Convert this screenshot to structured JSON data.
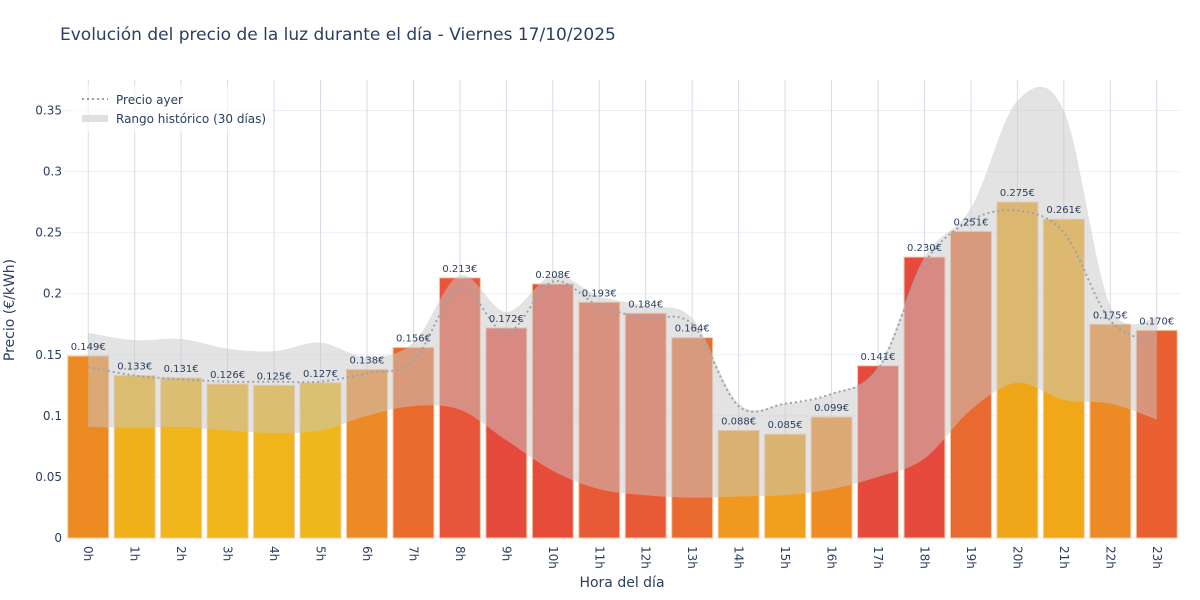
{
  "chart_data": {
    "type": "bar",
    "title": "Evolución del precio de la luz durante el día - Viernes 17/10/2025",
    "xlabel": "Hora del día",
    "ylabel": "Precio (€/kWh)",
    "ylim": [
      0,
      0.375
    ],
    "yticks": [
      0,
      0.05,
      0.1,
      0.15,
      0.2,
      0.25,
      0.3,
      0.35
    ],
    "ytick_labels": [
      "0",
      "0.05",
      "0.1",
      "0.15",
      "0.2",
      "0.25",
      "0.3",
      "0.35"
    ],
    "grid": true,
    "legend_position": "top-left",
    "categories": [
      "0h",
      "1h",
      "2h",
      "3h",
      "4h",
      "5h",
      "6h",
      "7h",
      "8h",
      "9h",
      "10h",
      "11h",
      "12h",
      "13h",
      "14h",
      "15h",
      "16h",
      "17h",
      "18h",
      "19h",
      "20h",
      "21h",
      "22h",
      "23h"
    ],
    "values": [
      0.149,
      0.133,
      0.131,
      0.126,
      0.125,
      0.127,
      0.138,
      0.156,
      0.213,
      0.172,
      0.208,
      0.193,
      0.184,
      0.164,
      0.088,
      0.085,
      0.099,
      0.141,
      0.23,
      0.251,
      0.275,
      0.261,
      0.175,
      0.17
    ],
    "labels": [
      "0.149€",
      "0.133€",
      "0.131€",
      "0.126€",
      "0.125€",
      "0.127€",
      "0.138€",
      "0.156€",
      "0.213€",
      "0.172€",
      "0.208€",
      "0.193€",
      "0.184€",
      "0.164€",
      "0.088€",
      "0.085€",
      "0.099€",
      "0.141€",
      "0.230€",
      "0.251€",
      "0.275€",
      "0.261€",
      "0.175€",
      "0.170€"
    ],
    "bar_colors": [
      "#ec8a22",
      "#efb21a",
      "#efb51a",
      "#efb51a",
      "#efb51a",
      "#efb81a",
      "#ec8a26",
      "#ea6a2e",
      "#e8553a",
      "#e64a3c",
      "#e64c3a",
      "#e85a36",
      "#e85a36",
      "#ea6a30",
      "#ef9a1e",
      "#efa01c",
      "#ee8c22",
      "#e64a3c",
      "#e64a3c",
      "#e96a30",
      "#f0a619",
      "#f0a819",
      "#ec8a26",
      "#ea6030"
    ],
    "series": [
      {
        "name": "Precio ayer",
        "type": "line",
        "style": "dotted",
        "color": "#9aa3ad",
        "values": [
          0.14,
          0.133,
          0.13,
          0.128,
          0.128,
          0.128,
          0.135,
          0.145,
          0.205,
          0.168,
          0.21,
          0.19,
          0.18,
          0.175,
          0.108,
          0.11,
          0.118,
          0.138,
          0.225,
          0.26,
          0.268,
          0.25,
          0.178,
          0.16
        ]
      },
      {
        "name": "Rango histórico (30 días)",
        "type": "area-band",
        "color": "#d3d3d3",
        "upper": [
          0.168,
          0.162,
          0.163,
          0.155,
          0.153,
          0.16,
          0.148,
          0.16,
          0.215,
          0.185,
          0.215,
          0.198,
          0.19,
          0.18,
          0.11,
          0.11,
          0.118,
          0.14,
          0.23,
          0.27,
          0.358,
          0.35,
          0.19,
          0.18
        ],
        "lower": [
          0.091,
          0.09,
          0.091,
          0.088,
          0.086,
          0.088,
          0.1,
          0.108,
          0.105,
          0.08,
          0.055,
          0.04,
          0.035,
          0.033,
          0.034,
          0.035,
          0.04,
          0.05,
          0.065,
          0.105,
          0.127,
          0.113,
          0.11,
          0.097
        ]
      }
    ]
  }
}
